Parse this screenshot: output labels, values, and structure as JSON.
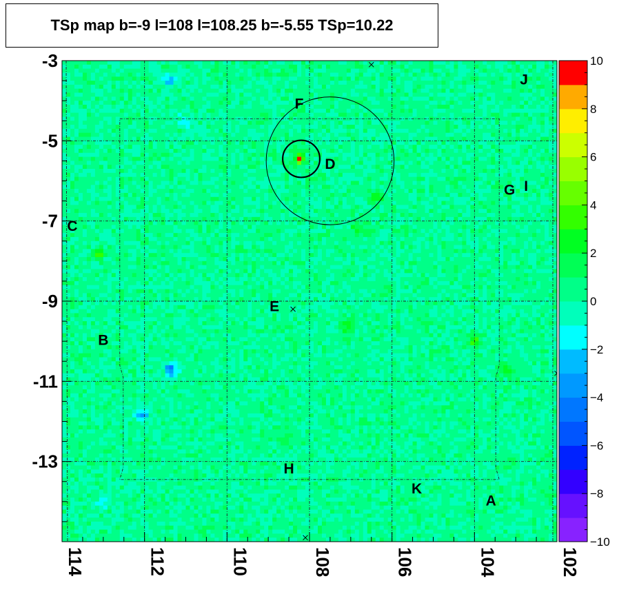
{
  "chart_data": {
    "type": "heatmap",
    "title": "TSp map b=-9 l=108 l=108.25 b=-5.55 TSp=10.22",
    "xlabel": "",
    "ylabel": "",
    "x_range": [
      102,
      114
    ],
    "x_reversed": true,
    "y_range": [
      -15,
      -3
    ],
    "x_ticks": [
      "114",
      "112",
      "110",
      "108",
      "106",
      "104",
      "102"
    ],
    "y_ticks": [
      "-3",
      "-5",
      "-7",
      "-9",
      "-11",
      "-13"
    ],
    "colorbar": {
      "range": [
        -10,
        10
      ],
      "ticks": [
        "10",
        "8",
        "6",
        "4",
        "2",
        "0",
        "−2",
        "−4",
        "−6",
        "−8",
        "−10"
      ]
    },
    "peak": {
      "l": 108.25,
      "b": -5.55,
      "ts": 10.22
    },
    "hotspots": [
      {
        "l": 108.25,
        "b": -5.45,
        "value": 10.2
      },
      {
        "l": 107.1,
        "b": -9.6,
        "value": 3.0
      },
      {
        "l": 104.0,
        "b": -10.0,
        "value": 3.5
      },
      {
        "l": 103.2,
        "b": -10.7,
        "value": 3.0
      },
      {
        "l": 106.4,
        "b": -6.4,
        "value": 2.5
      },
      {
        "l": 106.8,
        "b": -7.2,
        "value": 2.5
      },
      {
        "l": 113.1,
        "b": -7.8,
        "value": 2.5
      },
      {
        "l": 108.6,
        "b": -12.5,
        "value": 2.0
      }
    ],
    "coldspots": [
      {
        "l": 111.35,
        "b": -10.7,
        "value": -5.0
      },
      {
        "l": 112.05,
        "b": -11.85,
        "value": -4.0
      },
      {
        "l": 111.4,
        "b": -3.5,
        "value": -3.5
      },
      {
        "l": 111.0,
        "b": -4.5,
        "value": -2.5
      },
      {
        "l": 113.0,
        "b": -14.0,
        "value": -2.0
      }
    ],
    "circles": [
      {
        "l": 107.5,
        "b": -5.5,
        "r_deg": 1.55,
        "style": "thin"
      },
      {
        "l": 108.2,
        "b": -5.45,
        "r_deg": 0.45,
        "style": "thick"
      }
    ],
    "markers": [
      {
        "l": 106.5,
        "b": -3.1
      },
      {
        "l": 108.4,
        "b": -9.2
      },
      {
        "l": 108.1,
        "b": -14.9
      },
      {
        "l": 102.0,
        "b": -10.8
      }
    ],
    "source_labels": [
      {
        "text": "F",
        "l": 108.25,
        "b": -4.1
      },
      {
        "text": "D",
        "l": 107.5,
        "b": -5.6
      },
      {
        "text": "J",
        "l": 102.8,
        "b": -3.5
      },
      {
        "text": "G",
        "l": 103.15,
        "b": -6.25
      },
      {
        "text": "I",
        "l": 102.75,
        "b": -6.15
      },
      {
        "text": "C",
        "l": 113.75,
        "b": -7.15
      },
      {
        "text": "E",
        "l": 108.85,
        "b": -9.15
      },
      {
        "text": "B",
        "l": 113.0,
        "b": -10.0
      },
      {
        "text": "H",
        "l": 108.5,
        "b": -13.2
      },
      {
        "text": "K",
        "l": 105.4,
        "b": -13.7
      },
      {
        "text": "A",
        "l": 103.6,
        "b": -14.0
      }
    ]
  }
}
